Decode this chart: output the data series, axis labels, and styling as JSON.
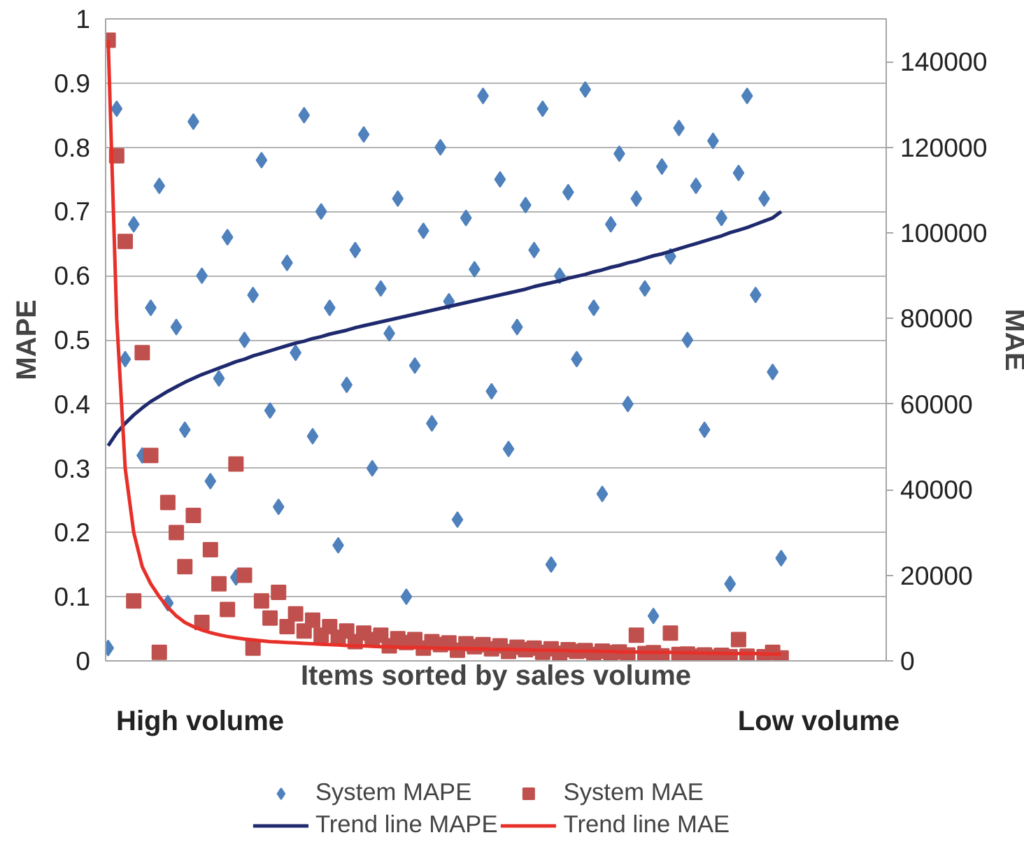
{
  "chart_data": {
    "type": "scatter",
    "xlabel": "Items sorted by sales volume",
    "ylabel": "MAPE",
    "y2label": "MAE",
    "categories": [
      null,
      null,
      null,
      null,
      null,
      null,
      null,
      null,
      null,
      null,
      null,
      null,
      null,
      null,
      null,
      null,
      null,
      null,
      null,
      null,
      null,
      null,
      null,
      null,
      null,
      null,
      null,
      null,
      null,
      null,
      null,
      null,
      null,
      null,
      null,
      null,
      null,
      null,
      null,
      null,
      null,
      null,
      null,
      null,
      null,
      null,
      null,
      null,
      null,
      null,
      null,
      null,
      null,
      null,
      null,
      null,
      null,
      null,
      null,
      null,
      null,
      null,
      null,
      null,
      null,
      null,
      null,
      null,
      null,
      null,
      null,
      null,
      null,
      null,
      null,
      null,
      null,
      null,
      null,
      null
    ],
    "ylim": [
      0,
      1
    ],
    "yticks": [
      0,
      0.1,
      0.2,
      0.3,
      0.4,
      0.5,
      0.6,
      0.7,
      0.8,
      0.9,
      1
    ],
    "y2lim": [
      0,
      150000
    ],
    "y2ticks": [
      0,
      20000,
      40000,
      60000,
      80000,
      100000,
      120000,
      140000
    ],
    "grid": "y",
    "legend": "bottom",
    "tick_labels": "y",
    "annotations": [
      "High volume",
      "Low volume"
    ],
    "series": [
      {
        "name": "System MAPE",
        "marker": "diamond",
        "color": "#4f81bd",
        "values": [
          0.02,
          0.86,
          0.47,
          0.68,
          0.32,
          0.55,
          0.74,
          0.09,
          0.52,
          0.36,
          0.84,
          0.6,
          0.28,
          0.44,
          0.66,
          0.13,
          0.5,
          0.57,
          0.78,
          0.39,
          0.24,
          0.62,
          0.48,
          0.85,
          0.35,
          0.7,
          0.55,
          0.18,
          0.43,
          0.64,
          0.82,
          0.3,
          0.58,
          0.51,
          0.72,
          0.1,
          0.46,
          0.67,
          0.37,
          0.8,
          0.56,
          0.22,
          0.69,
          0.61,
          0.88,
          0.42,
          0.75,
          0.33,
          0.52,
          0.71,
          0.64,
          0.86,
          0.15,
          0.6,
          0.73,
          0.47,
          0.89,
          0.55,
          0.26,
          0.68,
          0.79,
          0.4,
          0.72,
          0.58,
          0.07,
          0.77,
          0.63,
          0.83,
          0.5,
          0.74,
          0.36,
          0.81,
          0.69,
          0.12,
          0.76,
          0.88,
          0.57,
          0.72,
          0.45,
          0.16
        ]
      },
      {
        "name": "System MAE",
        "marker": "square",
        "axis": "y2",
        "color": "#c0504d",
        "values": [
          145000,
          118000,
          98000,
          14000,
          72000,
          48000,
          2000,
          37000,
          30000,
          22000,
          34000,
          9000,
          26000,
          18000,
          12000,
          46000,
          20000,
          3000,
          14000,
          10000,
          16000,
          8000,
          11000,
          7000,
          9500,
          6000,
          8000,
          5500,
          7000,
          4500,
          6500,
          5000,
          6000,
          3500,
          5200,
          4300,
          5000,
          3000,
          4500,
          3800,
          4200,
          2500,
          4000,
          3300,
          3800,
          2800,
          3500,
          2200,
          3200,
          2600,
          3000,
          2000,
          2800,
          1800,
          2600,
          2200,
          2400,
          1500,
          2300,
          1900,
          2100,
          1400,
          6000,
          1700,
          1900,
          1200,
          6500,
          1500,
          1600,
          1100,
          1400,
          900,
          1300,
          1000,
          5000,
          1100,
          null,
          1000,
          2000,
          700
        ]
      },
      {
        "name": "Trend line MAPE",
        "type": "line",
        "marker": "none",
        "color": "#1f2a6e",
        "values": [
          0.335,
          0.355,
          0.37,
          0.383,
          0.394,
          0.404,
          0.412,
          0.42,
          0.427,
          0.434,
          0.44,
          0.446,
          0.451,
          0.456,
          0.461,
          0.466,
          0.47,
          0.475,
          0.479,
          0.483,
          0.487,
          0.491,
          0.495,
          0.498,
          0.502,
          0.505,
          0.509,
          0.512,
          0.515,
          0.519,
          0.522,
          0.525,
          0.528,
          0.531,
          0.534,
          0.537,
          0.54,
          0.543,
          0.546,
          0.549,
          0.552,
          0.555,
          0.558,
          0.561,
          0.564,
          0.567,
          0.57,
          0.573,
          0.576,
          0.579,
          0.583,
          0.586,
          0.589,
          0.592,
          0.596,
          0.599,
          0.602,
          0.606,
          0.609,
          0.613,
          0.616,
          0.62,
          0.623,
          0.627,
          0.631,
          0.634,
          0.638,
          0.642,
          0.646,
          0.65,
          0.654,
          0.658,
          0.662,
          0.667,
          0.671,
          0.675,
          0.68,
          0.685,
          0.69,
          0.7
        ]
      },
      {
        "name": "Trend line MAE",
        "type": "line",
        "marker": "none",
        "axis": "y2",
        "color": "#e8302a",
        "values": [
          145000,
          80000,
          45000,
          30000,
          22000,
          18000,
          15000,
          12500,
          10500,
          9000,
          8000,
          7200,
          6600,
          6100,
          5700,
          5400,
          5100,
          4900,
          4700,
          4500,
          4400,
          4300,
          4200,
          4100,
          4000,
          3900,
          3800,
          3700,
          3600,
          3500,
          3500,
          3400,
          3300,
          3300,
          3200,
          3200,
          3100,
          3100,
          3000,
          3000,
          2900,
          2900,
          2900,
          2800,
          2800,
          2700,
          2700,
          2700,
          2600,
          2600,
          2500,
          2500,
          2500,
          2400,
          2400,
          2300,
          2300,
          2300,
          2200,
          2200,
          2100,
          2100,
          2100,
          2000,
          2000,
          2000,
          2000,
          1900,
          1900,
          1900,
          1800,
          1800,
          1800,
          1700,
          1700,
          1700,
          1700,
          1600,
          1600,
          1600
        ]
      }
    ]
  }
}
